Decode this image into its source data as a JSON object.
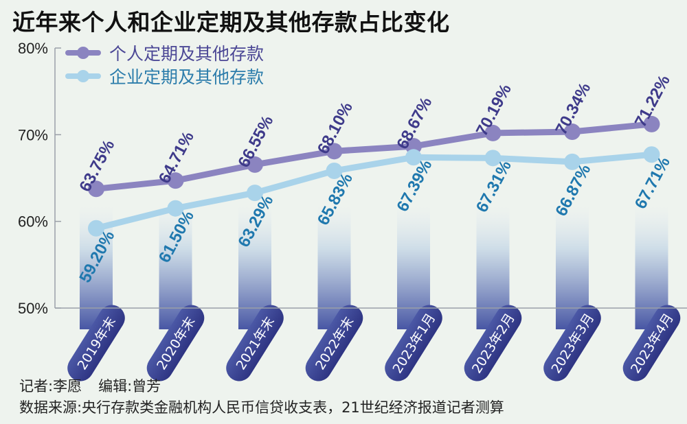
{
  "title": "近年来个人和企业定期及其他存款占比变化",
  "legend": [
    {
      "label": "个人定期及其他存款",
      "color": "#8b84c0",
      "text_color": "#4b4795"
    },
    {
      "label": "企业定期及其他存款",
      "color": "#a9d3ea",
      "text_color": "#2b7cab"
    }
  ],
  "credits": {
    "reporter": "记者:李愿",
    "editor": "编辑:曾芳",
    "source": "数据来源:央行存款类金融机构人民币信贷收支表，21世纪经济报道记者测算"
  },
  "chart_data": {
    "type": "line",
    "categories": [
      "2019年末",
      "2020年末",
      "2021年末",
      "2022年末",
      "2023年1月",
      "2023年2月",
      "2023年3月",
      "2023年4月"
    ],
    "ylim": [
      50,
      80
    ],
    "yticks": [
      "50%",
      "60%",
      "70%",
      "80%"
    ],
    "grid": false,
    "legend_position": "top-left",
    "series": [
      {
        "name": "个人定期及其他存款",
        "values": [
          63.75,
          64.71,
          66.55,
          68.1,
          68.67,
          70.19,
          70.34,
          71.22
        ],
        "labels": [
          "63.75%",
          "64.71%",
          "66.55%",
          "68.10%",
          "68.67%",
          "70.19%",
          "70.34%",
          "71.22%"
        ],
        "color": "#8b84c0",
        "label_color": "#3e3a8a",
        "label_position": "above"
      },
      {
        "name": "企业定期及其他存款",
        "values": [
          59.2,
          61.5,
          63.29,
          65.83,
          67.39,
          67.31,
          66.87,
          67.71
        ],
        "labels": [
          "59.20%",
          "61.50%",
          "63.29%",
          "65.83%",
          "67.39%",
          "67.31%",
          "66.87%",
          "67.71%"
        ],
        "color": "#a9d3ea",
        "label_color": "#1f78ae",
        "label_position": "below"
      }
    ]
  }
}
